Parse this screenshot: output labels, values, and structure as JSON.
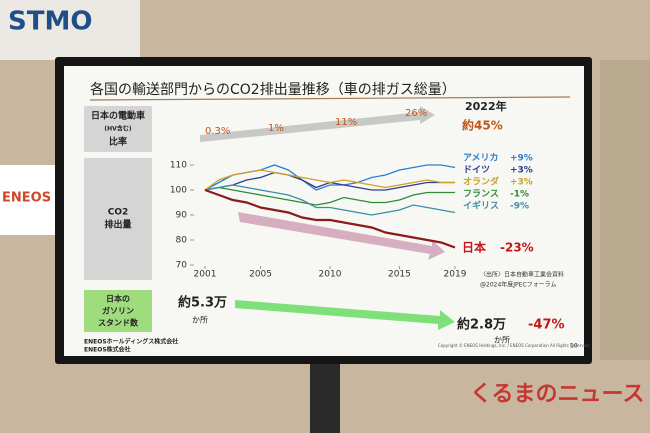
{
  "background": {
    "sign": "STMO",
    "logo": "ENEOS",
    "watermark": "くるまのニュース"
  },
  "slide": {
    "ev_row": {
      "label": [
        "日本の電動車",
        "(HV含む)",
        "比率"
      ],
      "points": [
        "0.3%",
        "1%",
        "11%",
        "26%"
      ],
      "year": "2022年",
      "latest": "約45%"
    },
    "co2_label": [
      "CO2",
      "排出量"
    ],
    "station_row": {
      "label": [
        "日本の",
        "ガソリン",
        "スタンド数"
      ],
      "start": "約5.3万",
      "start_unit": "か所",
      "end": "約2.8万",
      "change": "-47%",
      "end_unit": "か所"
    },
    "source": [
      "〈出所〉日本自動車工業会資料",
      "@2024年度JPECフォーラム"
    ],
    "footer": [
      "ENEOSホールディングス株式会社",
      "ENEOS株式会社"
    ],
    "copyright": "Copyright © ENEOS Holdings, Inc. / ENEOS Corporation All Rights Reserved.",
    "page": "10"
  },
  "chart_data": {
    "type": "line",
    "title": "各国の輸送部門からのCO2排出量推移（車の排ガス総量）",
    "x": [
      2001,
      2002,
      2003,
      2004,
      2005,
      2006,
      2007,
      2008,
      2009,
      2010,
      2011,
      2012,
      2013,
      2014,
      2015,
      2016,
      2017,
      2018,
      2019
    ],
    "xlim": [
      2001,
      2019
    ],
    "xticks": [
      2001,
      2005,
      2010,
      2015,
      2019
    ],
    "ylim": [
      70,
      110
    ],
    "yticks": [
      70,
      80,
      90,
      100,
      110
    ],
    "grid": false,
    "series": [
      {
        "name": "アメリカ",
        "change": "+9%",
        "color": "#2a7fd4",
        "values": [
          100,
          103,
          106,
          107,
          108,
          110,
          108,
          104,
          100,
          102,
          102,
          103,
          105,
          106,
          108,
          109,
          110,
          110,
          109
        ]
      },
      {
        "name": "ドイツ",
        "change": "+3%",
        "color": "#2d3d8f",
        "values": [
          100,
          101,
          102,
          104,
          105,
          107,
          106,
          104,
          101,
          103,
          102,
          101,
          100,
          100,
          101,
          102,
          103,
          103,
          103
        ]
      },
      {
        "name": "オランダ",
        "change": "+3%",
        "color": "#c9a227",
        "values": [
          100,
          104,
          106,
          107,
          108,
          107,
          106,
          105,
          104,
          103,
          104,
          103,
          102,
          101,
          102,
          103,
          104,
          103,
          103
        ]
      },
      {
        "name": "フランス",
        "change": "-1%",
        "color": "#2e8b3a",
        "values": [
          100,
          101,
          100,
          99,
          98,
          97,
          96,
          95,
          94,
          95,
          97,
          96,
          95,
          95,
          96,
          98,
          99,
          99,
          99
        ]
      },
      {
        "name": "イギリス",
        "change": "-9%",
        "color": "#3a8fa8",
        "values": [
          100,
          101,
          102,
          101,
          100,
          99,
          98,
          96,
          93,
          93,
          92,
          91,
          90,
          91,
          92,
          94,
          93,
          92,
          91
        ]
      },
      {
        "name": "日本",
        "change": "-23%",
        "color": "#8b1a1a",
        "values": [
          100,
          98,
          96,
          95,
          93,
          92,
          91,
          89,
          88,
          88,
          87,
          86,
          85,
          83,
          82,
          81,
          80,
          79,
          77
        ]
      }
    ]
  }
}
